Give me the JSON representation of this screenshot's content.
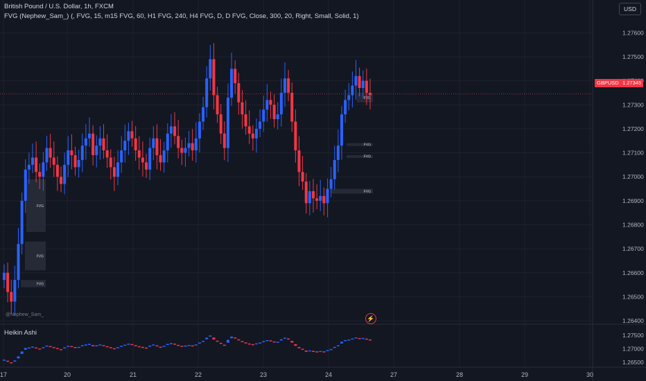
{
  "header": {
    "symbol_title": "British Pound / U.S. Dollar, 1h, FXCM",
    "indicator": "FVG (Nephew_Sam_) (, FVG, 15, m15 FVG, 60, H1 FVG, 240, H4 FVG, D, D FVG, Close, 300, 20, Right, Small, Solid, 1)"
  },
  "currency_button": "USD",
  "symbol_tag": "GBPUSD",
  "last_price_tag": "1.27345",
  "watermark": "@Nephew_Sam_",
  "fvg_label": "FVG",
  "lower_pane": {
    "title": "Heikin Ashi"
  },
  "price_axis": [
    "1.27600",
    "1.27500",
    "1.27400",
    "1.27300",
    "1.27200",
    "1.27100",
    "1.27000",
    "1.26900",
    "1.26800",
    "1.26700",
    "1.26600",
    "1.26500",
    "1.26400"
  ],
  "lower_axis": [
    "1.27500",
    "1.27000",
    "1.26500"
  ],
  "date_axis": [
    "17",
    "20",
    "21",
    "22",
    "23",
    "24",
    "27",
    "28",
    "29",
    "30"
  ],
  "colors": {
    "up": "#2962ff",
    "down": "#f23645",
    "background": "#131722",
    "grid": "#1e222d",
    "fvg_box": "#2a2e39"
  },
  "chart_data": {
    "type": "candlestick",
    "timeframe": "1h",
    "ylim": [
      1.2638,
      1.2765
    ],
    "last_price": 1.27345,
    "closes": [
      1.266,
      1.2652,
      1.2648,
      1.2657,
      1.2672,
      1.269,
      1.2703,
      1.2705,
      1.2708,
      1.2702,
      1.27,
      1.2706,
      1.2712,
      1.2708,
      1.2705,
      1.27,
      1.2697,
      1.2705,
      1.2711,
      1.2709,
      1.2704,
      1.2707,
      1.2713,
      1.2716,
      1.2718,
      1.2709,
      1.2713,
      1.2716,
      1.2711,
      1.2708,
      1.2704,
      1.27,
      1.2706,
      1.2711,
      1.2715,
      1.2719,
      1.2716,
      1.2711,
      1.2708,
      1.2706,
      1.2703,
      1.2712,
      1.2716,
      1.2709,
      1.2706,
      1.2711,
      1.2718,
      1.2721,
      1.2717,
      1.2712,
      1.271,
      1.2712,
      1.2714,
      1.2711,
      1.2716,
      1.2723,
      1.2729,
      1.2741,
      1.2749,
      1.2734,
      1.2726,
      1.2718,
      1.2712,
      1.2733,
      1.2745,
      1.2739,
      1.2731,
      1.2726,
      1.2721,
      1.2718,
      1.2716,
      1.272,
      1.2723,
      1.2728,
      1.2732,
      1.273,
      1.2724,
      1.2726,
      1.2735,
      1.2741,
      1.2735,
      1.2723,
      1.2711,
      1.2702,
      1.2698,
      1.2689,
      1.2694,
      1.2691,
      1.269,
      1.2692,
      1.2689,
      1.2695,
      1.2699,
      1.2707,
      1.2713,
      1.2726,
      1.2732,
      1.2734,
      1.2738,
      1.2742,
      1.2737,
      1.274,
      1.2735,
      1.2734
    ],
    "fvg_zones": [
      {
        "label": "FVG",
        "top": 1.2735,
        "bottom": 1.2731
      },
      {
        "label": "FVG",
        "top": 1.2714,
        "bottom": 1.2713
      },
      {
        "label": "FVG",
        "top": 1.2709,
        "bottom": 1.2708
      },
      {
        "label": "FVG",
        "top": 1.2695,
        "bottom": 1.2693
      },
      {
        "label": "FVG",
        "top": 1.2699,
        "bottom": 1.2677
      },
      {
        "label": "FVG",
        "top": 1.2673,
        "bottom": 1.2661
      },
      {
        "label": "FVG",
        "top": 1.2657,
        "bottom": 1.2654
      }
    ]
  }
}
